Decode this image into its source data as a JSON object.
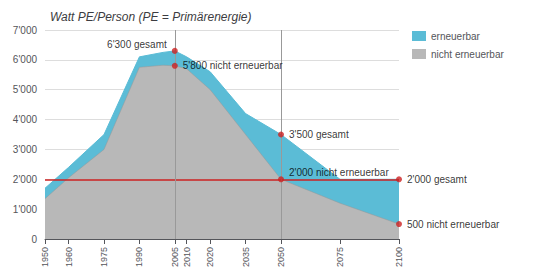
{
  "chart_data": {
    "type": "area",
    "title": "Watt PE/Person (PE = Primärenergie)",
    "x": [
      1950,
      1960,
      1975,
      1990,
      2000,
      2005,
      2010,
      2020,
      2035,
      2050,
      2075,
      2100
    ],
    "series": [
      {
        "name": "erneuerbar",
        "color": "#5bbcd6",
        "values": [
          1700,
          2400,
          3500,
          6100,
          6250,
          6300,
          6100,
          5600,
          4200,
          3500,
          2000,
          2000
        ]
      },
      {
        "name": "nicht erneuerbar",
        "color": "#b8b8b8",
        "values": [
          1350,
          2050,
          3000,
          5750,
          5820,
          5800,
          5700,
          5000,
          3500,
          2000,
          1200,
          500
        ]
      }
    ],
    "stacked": false,
    "xlim": [
      1950,
      2100
    ],
    "xticks": [
      1950,
      1960,
      1975,
      1990,
      2005,
      2010,
      2020,
      2035,
      2050,
      2075,
      2100
    ],
    "ylim": [
      0,
      7000
    ],
    "yticks": [
      0,
      {
        "value": 1000,
        "label": "1'000"
      },
      {
        "value": 2000,
        "label": "2'000"
      },
      {
        "value": 3000,
        "label": "3'000"
      },
      {
        "value": 4000,
        "label": "4'000"
      },
      {
        "value": 5000,
        "label": "5'000"
      },
      {
        "value": 6000,
        "label": "6'000"
      },
      {
        "value": 7000,
        "label": "7'000"
      }
    ],
    "grid": true,
    "legend": "right",
    "hlines": [
      {
        "y": 2000,
        "color": "#cc2222"
      }
    ],
    "vlines": [
      {
        "x": 2005,
        "color": "#999999"
      },
      {
        "x": 2050,
        "color": "#999999"
      }
    ],
    "annotations": [
      {
        "x": 2005,
        "y": 6300,
        "text": "6'300 gesamt",
        "color": "#cc2222"
      },
      {
        "x": 2005,
        "y": 5800,
        "text": "5'800 nicht erneuerbar",
        "color": "#cc2222"
      },
      {
        "x": 2050,
        "y": 3500,
        "text": "3'500 gesamt",
        "color": "#cc2222"
      },
      {
        "x": 2050,
        "y": 2000,
        "text": "2'000 nicht erneuerbar",
        "color": "#cc2222"
      },
      {
        "x": 2100,
        "y": 2000,
        "text": "2'000 gesamt",
        "color": "#cc2222"
      },
      {
        "x": 2100,
        "y": 500,
        "text": "500 nicht erneuerbar",
        "color": "#cc2222"
      }
    ]
  }
}
